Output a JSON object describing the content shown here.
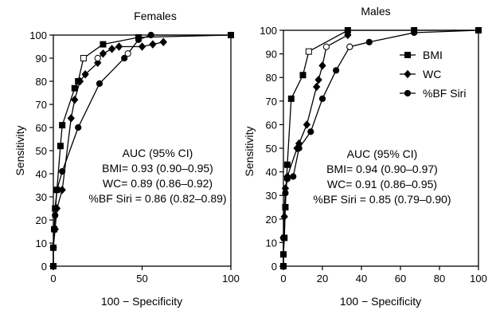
{
  "chart_data": [
    {
      "type": "line",
      "title": "Females",
      "xlabel": "100 − Specificity",
      "ylabel": "Sensitivity",
      "xlim": [
        0,
        100
      ],
      "ylim": [
        0,
        100
      ],
      "xticks": [
        0,
        50,
        100
      ],
      "yticks": [
        0,
        10,
        20,
        30,
        40,
        50,
        60,
        70,
        80,
        90,
        100
      ],
      "grid": false,
      "annotation": [
        "AUC (95% CI)",
        "BMI= 0.93 (0.90–0.95)",
        "WC= 0.89 (0.86–0.92)",
        "%BF Siri = 0.86 (0.82–0.89)"
      ],
      "series": [
        {
          "name": "BMI",
          "marker": "square",
          "x": [
            0,
            0,
            0.5,
            1,
            2,
            4,
            5,
            12,
            14,
            28,
            48,
            100
          ],
          "y": [
            0,
            8,
            16,
            25,
            33,
            52,
            61,
            77,
            80,
            96,
            99,
            100
          ],
          "open_points": [
            [
              17,
              90
            ]
          ]
        },
        {
          "name": "WC",
          "marker": "diamond",
          "x": [
            0,
            0,
            1,
            2,
            5,
            10,
            12,
            15,
            18,
            25,
            28,
            33,
            37,
            50,
            56,
            62
          ],
          "y": [
            0,
            8,
            16,
            25,
            33,
            64,
            72,
            80,
            83,
            88,
            92,
            94,
            95,
            95,
            96,
            97
          ],
          "open_points": [
            [
              25,
              90
            ]
          ]
        },
        {
          "name": "%BF Siri",
          "marker": "circle",
          "x": [
            0,
            0,
            0.5,
            1,
            2,
            5,
            14,
            26,
            40,
            48,
            55,
            100
          ],
          "y": [
            0,
            8,
            16,
            22,
            33,
            41,
            60,
            79,
            90,
            98,
            100,
            100
          ],
          "open_points": [
            [
              42,
              92
            ]
          ]
        }
      ]
    },
    {
      "type": "line",
      "title": "Males",
      "xlabel": "100 − Specificity",
      "ylabel": "Sensitivity",
      "xlim": [
        0,
        100
      ],
      "ylim": [
        0,
        100
      ],
      "xticks": [
        0,
        20,
        40,
        60,
        80,
        100
      ],
      "yticks": [
        0,
        10,
        20,
        30,
        40,
        50,
        60,
        70,
        80,
        90,
        100
      ],
      "grid": false,
      "legend_position": "right",
      "annotation": [
        "AUC (95% CI)",
        "BMI= 0.94 (0.90–0.97)",
        "WC= 0.91 (0.86–0.95)",
        "%BF Siri = 0.85 (0.79–0.90)"
      ],
      "series": [
        {
          "name": "BMI",
          "marker": "square",
          "x": [
            0,
            0,
            0.5,
            1,
            2,
            4,
            10,
            33,
            67,
            100
          ],
          "y": [
            0,
            5,
            12,
            25,
            43,
            71,
            81,
            100,
            100,
            100
          ],
          "open_points": [
            [
              13,
              91
            ]
          ]
        },
        {
          "name": "WC",
          "marker": "diamond",
          "x": [
            0,
            0,
            0.5,
            1,
            2,
            7,
            8,
            12,
            17,
            18,
            20,
            33
          ],
          "y": [
            0,
            12,
            21,
            33,
            38,
            50,
            52,
            60,
            76,
            79,
            85,
            98
          ],
          "open_points": [
            [
              22,
              93
            ]
          ]
        },
        {
          "name": "%BF Siri",
          "marker": "circle",
          "x": [
            0,
            0,
            1,
            2,
            5,
            8,
            14,
            20,
            27,
            34,
            44,
            67,
            100
          ],
          "y": [
            0,
            12,
            31,
            37,
            38,
            50,
            57,
            71,
            83,
            93,
            95,
            99,
            100
          ],
          "open_points": [
            [
              34,
              93
            ]
          ]
        }
      ]
    }
  ],
  "icons": {
    "square": "filled-square-marker",
    "diamond": "filled-diamond-marker",
    "circle": "filled-circle-marker",
    "open": "open-square/circle-marker"
  }
}
